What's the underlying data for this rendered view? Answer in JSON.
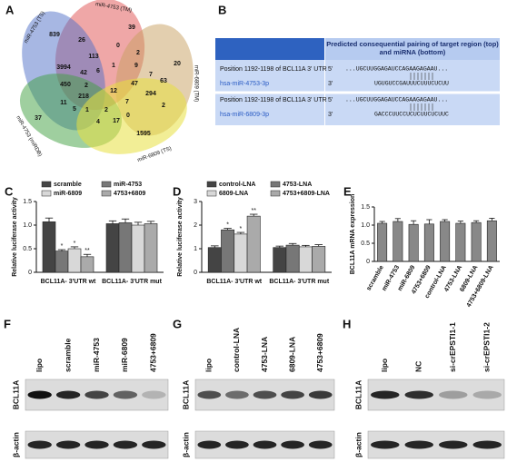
{
  "panels": {
    "A": {
      "letter": "A",
      "sets": [
        "miR-4753 (TS)",
        "miR-4753 (TM)",
        "miR-6809 (TM)",
        "miR-4753 (miRDB)",
        "miR-6809 (TS)"
      ],
      "counts": [
        839,
        26,
        39,
        20,
        37,
        1595,
        3994,
        113,
        0,
        2,
        42,
        450,
        6,
        1,
        9,
        7,
        47,
        294,
        63,
        2,
        218,
        12,
        7,
        11,
        5,
        1,
        2,
        4,
        17,
        0,
        2
      ]
    },
    "B": {
      "letter": "B",
      "header": "Predicted consequential pairing of target region (top) and miRNA (bottom)",
      "rows": [
        {
          "position": "Position 1192-1198 of BCL11A 3' UTR",
          "mirna": "hsa-miR-4753-3p",
          "target_end": "5'",
          "target": "...UGCUUGGAGAUCCAGAAGAGAAU...",
          "mirna_end": "3'",
          "mirna_seq": "UGUGUCCGAUUUCUUUCUCUU"
        },
        {
          "position": "Position 1192-1198 of BCL11A 3' UTR",
          "mirna": "hsa-miR-6809-3p",
          "target_end": "5'",
          "target": "...UGCUUGGAGAUCCAGAAGAGAAU...",
          "mirna_end": "3'",
          "mirna_seq": "GACCCUUCCUCUCUUCUCUUC"
        }
      ]
    },
    "F": {
      "letter": "F",
      "lanes": [
        "lipo",
        "scramble",
        "miR-4753",
        "miR-6809",
        "4753+6809"
      ],
      "rows": [
        "BCL11A",
        "β-actin"
      ]
    },
    "G": {
      "letter": "G",
      "lanes": [
        "lipo",
        "control-LNA",
        "4753-LNA",
        "6809-LNA",
        "4753+6809"
      ],
      "rows": [
        "BCL11A",
        "β-actin"
      ]
    },
    "H": {
      "letter": "H",
      "lanes": [
        "lipo",
        "NC",
        "si-crEPSTI1-1",
        "si-crEPSTI1-2"
      ],
      "rows": [
        "BCL11A",
        "β-actin"
      ]
    }
  },
  "chart_data": [
    {
      "type": "bar",
      "panel_label": "C",
      "ylabel": "Relative luciferase activity",
      "categories": [
        "BCL11A- 3'UTR wt",
        "BCL11A- 3'UTR mut"
      ],
      "ylim": [
        0,
        1.5
      ],
      "yticks": [
        0,
        0.5,
        {
          "value": 1,
          "label": "1.0"
        },
        1.5
      ],
      "series": [
        {
          "name": "scramble",
          "color": "#444444",
          "values": [
            1.07,
            1.03
          ],
          "errors": [
            0.08,
            0.06
          ]
        },
        {
          "name": "miR-4753",
          "color": "#777777",
          "values": [
            0.45,
            1.05
          ],
          "errors": [
            0.03,
            0.08
          ],
          "significance": [
            "*",
            null
          ]
        },
        {
          "name": "miR-6809",
          "color": "#d8d8d8",
          "values": [
            0.5,
            1.0
          ],
          "errors": [
            0.04,
            0.06
          ],
          "significance": [
            "*",
            null
          ]
        },
        {
          "name": "4753+6809",
          "color": "#aaaaaa",
          "values": [
            0.33,
            1.03
          ],
          "errors": [
            0.05,
            0.05
          ],
          "significance": [
            "**",
            null
          ]
        }
      ]
    },
    {
      "type": "bar",
      "panel_label": "D",
      "ylabel": "Relative luciferase activity",
      "categories": [
        "BCL11A- 3'UTR wt",
        "BCL11A- 3'UTR mut"
      ],
      "ylim": [
        0,
        3
      ],
      "yticks": [
        0,
        1,
        2,
        3
      ],
      "series": [
        {
          "name": "control-LNA",
          "color": "#444444",
          "values": [
            1.05,
            1.05
          ],
          "errors": [
            0.07,
            0.06
          ]
        },
        {
          "name": "4753-LNA",
          "color": "#777777",
          "values": [
            1.8,
            1.15
          ],
          "errors": [
            0.06,
            0.07
          ],
          "significance": [
            "*",
            null
          ]
        },
        {
          "name": "6809-LNA",
          "color": "#d8d8d8",
          "values": [
            1.62,
            1.08
          ],
          "errors": [
            0.07,
            0.06
          ],
          "significance": [
            "*",
            null
          ]
        },
        {
          "name": "4753+6809-LNA",
          "color": "#aaaaaa",
          "values": [
            2.38,
            1.1
          ],
          "errors": [
            0.08,
            0.07
          ],
          "significance": [
            "**",
            null
          ]
        }
      ]
    },
    {
      "type": "bar",
      "panel_label": "E",
      "ylabel": "BCL11A mRNA expression",
      "categories": [
        "scramble",
        "miR-4753",
        "miR-6809",
        "4753+6809",
        "control-LNA",
        "4753-LNA",
        "6809-LNA",
        "4753+6809-LNA"
      ],
      "ylim": [
        0,
        1.5
      ],
      "yticks": [
        0,
        0.5,
        {
          "value": 1,
          "label": "1.0"
        },
        1.5
      ],
      "color": "#888888",
      "values": [
        1.05,
        1.1,
        1.02,
        1.03,
        1.1,
        1.05,
        1.07,
        1.12
      ],
      "errors": [
        0.05,
        0.08,
        0.1,
        0.12,
        0.05,
        0.06,
        0.05,
        0.07
      ]
    }
  ]
}
